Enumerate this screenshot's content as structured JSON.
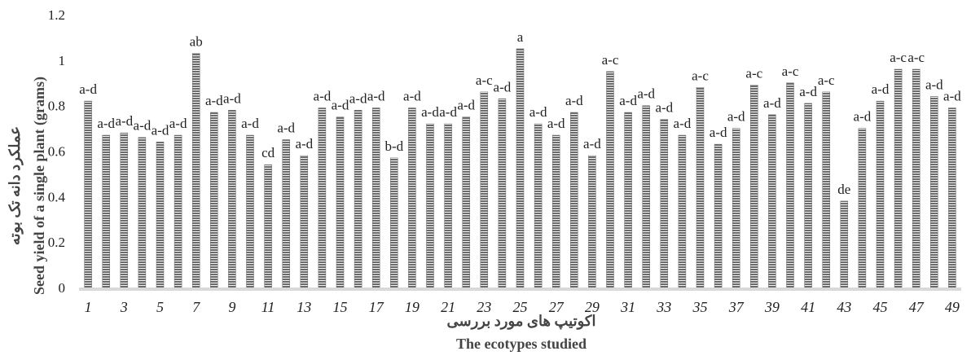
{
  "chart_data": {
    "type": "bar",
    "categories": [
      "1",
      "2",
      "3",
      "4",
      "5",
      "6",
      "7",
      "8",
      "9",
      "10",
      "11",
      "12",
      "13",
      "14",
      "15",
      "16",
      "17",
      "18",
      "19",
      "20",
      "21",
      "22",
      "23",
      "24",
      "25",
      "26",
      "27",
      "28",
      "29",
      "30",
      "31",
      "32",
      "33",
      "34",
      "35",
      "36",
      "37",
      "38",
      "39",
      "40",
      "41",
      "42",
      "43",
      "44",
      "45",
      "46",
      "47",
      "48",
      "49"
    ],
    "x_tick_labels": [
      "1",
      "3",
      "5",
      "7",
      "9",
      "11",
      "13",
      "15",
      "17",
      "19",
      "21",
      "23",
      "25",
      "27",
      "29",
      "31",
      "33",
      "35",
      "37",
      "39",
      "41",
      "43",
      "45",
      "47",
      "49"
    ],
    "values": [
      0.82,
      0.67,
      0.68,
      0.66,
      0.64,
      0.67,
      1.03,
      0.77,
      0.78,
      0.67,
      0.54,
      0.65,
      0.58,
      0.79,
      0.75,
      0.78,
      0.79,
      0.57,
      0.79,
      0.72,
      0.72,
      0.75,
      0.86,
      0.83,
      1.05,
      0.72,
      0.67,
      0.77,
      0.58,
      0.95,
      0.77,
      0.8,
      0.74,
      0.67,
      0.88,
      0.63,
      0.7,
      0.89,
      0.76,
      0.9,
      0.81,
      0.86,
      0.38,
      0.7,
      0.82,
      0.96,
      0.96,
      0.84,
      0.79
    ],
    "labels": [
      "a-d",
      "a-d",
      "a-d",
      "a-d",
      "a-d",
      "a-d",
      "ab",
      "a-d",
      "a-d",
      "a-d",
      "cd",
      "a-d",
      "a-d",
      "a-d",
      "a-d",
      "a-d",
      "a-d",
      "b-d",
      "a-d",
      "a-d",
      "a-d",
      "a-d",
      "a-c",
      "a-d",
      "a",
      "a-d",
      "a-d",
      "a-d",
      "a-d",
      "a-c",
      "a-d",
      "a-d",
      "a-d",
      "a-d",
      "a-c",
      "a-d",
      "a-d",
      "a-c",
      "a-d",
      "a-c",
      "a-d",
      "a-c",
      "de",
      "a-d",
      "a-d",
      "a-c",
      "a-c",
      "a-d",
      "a-d"
    ],
    "ylim": [
      0,
      1.2
    ],
    "yticks": [
      "0",
      "0.2",
      "0.4",
      "0.6",
      "0.8",
      "1",
      "1.2"
    ],
    "ylabel_fa": "عملکرد دانه تک بوته",
    "ylabel_en": "Seed yield of a single plant (grams)",
    "xlabel_fa": "اکوتیپ های مورد بررسی",
    "xlabel_en": "The ecotypes studied",
    "bar_color": "#6b6b6b",
    "axis_color": "#d9d9d9",
    "grid": false
  }
}
